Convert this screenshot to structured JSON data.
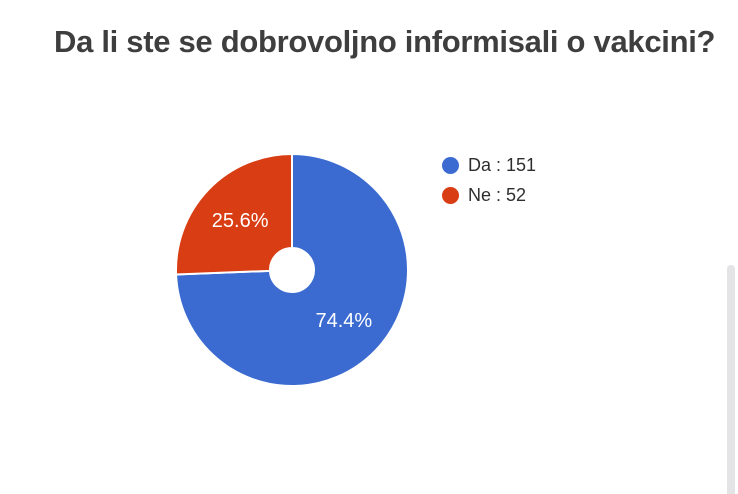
{
  "chart_data": {
    "type": "pie",
    "title": "Da li ste se dobrovoljno informisali o vakcini?",
    "donut": true,
    "hole_ratio": 0.19,
    "start_angle_deg": 0,
    "direction": "clockwise",
    "total": 203,
    "slices": [
      {
        "label": "Da",
        "value": 151,
        "percent": 74.4,
        "pct_label": "74.4%",
        "legend_label": "Da : 151",
        "color": "#3b6bd1"
      },
      {
        "label": "Ne",
        "value": 52,
        "percent": 25.6,
        "pct_label": "25.6%",
        "legend_label": "Ne : 52",
        "color": "#d93d14"
      }
    ],
    "legend_position": "right",
    "label_color": "#ffffff",
    "slice_border_color": "#ffffff"
  }
}
